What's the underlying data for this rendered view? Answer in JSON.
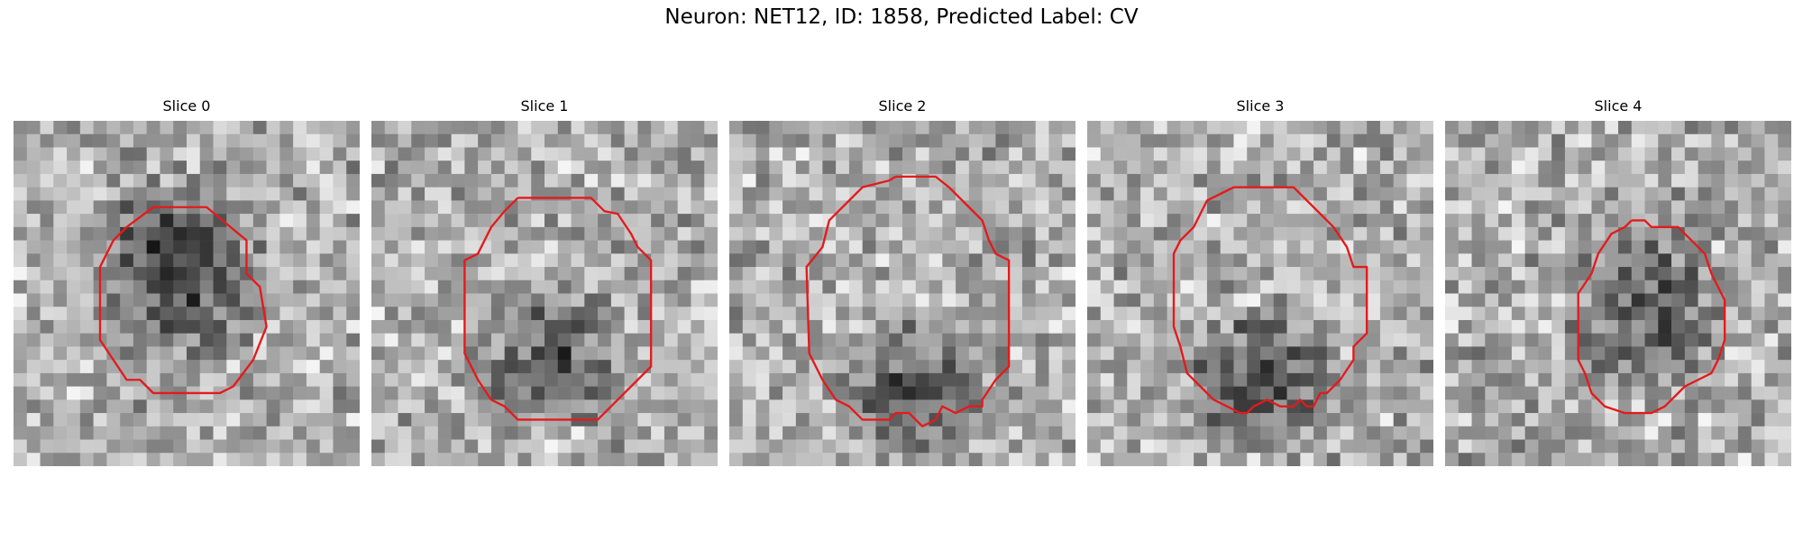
{
  "figure": {
    "title": "Neuron: NET12, ID: 1858, Predicted Label: CV"
  },
  "panels": [
    {
      "title": "Slice 0",
      "seed": 11,
      "grid": 26,
      "dark_region": {
        "cx": 12.5,
        "cy": 11.0,
        "r": 7.5,
        "strength": 95
      },
      "contour": [
        [
          10.5,
          6.5
        ],
        [
          14.5,
          6.5
        ],
        [
          17.5,
          9
        ],
        [
          17.5,
          11.5
        ],
        [
          18.5,
          12.5
        ],
        [
          19,
          15.5
        ],
        [
          18,
          18
        ],
        [
          16.5,
          20
        ],
        [
          15.5,
          20.5
        ],
        [
          13,
          20.5
        ],
        [
          10.5,
          20.5
        ],
        [
          9.5,
          19.5
        ],
        [
          8.5,
          19.5
        ],
        [
          7.5,
          18
        ],
        [
          6.5,
          16.5
        ],
        [
          6.5,
          11
        ],
        [
          7.5,
          9
        ],
        [
          8.5,
          8
        ],
        [
          10.5,
          6.5
        ]
      ],
      "contour_color": "#e41a1c"
    },
    {
      "title": "Slice 1",
      "seed": 23,
      "grid": 26,
      "dark_region": {
        "cx": 13.5,
        "cy": 17.5,
        "r": 6.0,
        "strength": 75
      },
      "contour": [
        [
          11,
          5.8
        ],
        [
          16.5,
          5.8
        ],
        [
          17.5,
          6.8
        ],
        [
          18.5,
          7
        ],
        [
          19.5,
          8.5
        ],
        [
          20,
          9.5
        ],
        [
          21,
          10.5
        ],
        [
          21,
          18.5
        ],
        [
          20,
          19.5
        ],
        [
          18,
          21.5
        ],
        [
          17,
          22.5
        ],
        [
          11,
          22.5
        ],
        [
          10,
          21.5
        ],
        [
          9,
          21
        ],
        [
          8,
          19.5
        ],
        [
          7,
          17.5
        ],
        [
          7,
          10.5
        ],
        [
          8,
          10
        ],
        [
          9,
          8
        ],
        [
          10,
          6.8
        ],
        [
          11,
          5.8
        ]
      ],
      "contour_color": "#e41a1c"
    },
    {
      "title": "Slice 2",
      "seed": 37,
      "grid": 26,
      "dark_region": {
        "cx": 13.5,
        "cy": 20.0,
        "r": 5.5,
        "strength": 85
      },
      "contour": [
        [
          12.5,
          4.2
        ],
        [
          15.5,
          4.2
        ],
        [
          16.5,
          5
        ],
        [
          17,
          5.5
        ],
        [
          19,
          7.5
        ],
        [
          19.5,
          9
        ],
        [
          20,
          10
        ],
        [
          21,
          10.5
        ],
        [
          21,
          18.5
        ],
        [
          20,
          19.5
        ],
        [
          19,
          21
        ],
        [
          19,
          21.5
        ],
        [
          18,
          21.5
        ],
        [
          17,
          22
        ],
        [
          16,
          21.5
        ],
        [
          15.5,
          22.5
        ],
        [
          14.5,
          23
        ],
        [
          13.5,
          22
        ],
        [
          13,
          22
        ],
        [
          12.5,
          22
        ],
        [
          12,
          22.5
        ],
        [
          11,
          22.5
        ],
        [
          10,
          22.5
        ],
        [
          9,
          21.5
        ],
        [
          8,
          21
        ],
        [
          7,
          19.5
        ],
        [
          6,
          17.5
        ],
        [
          5.8,
          11
        ],
        [
          7,
          9.5
        ],
        [
          7.5,
          7.5
        ],
        [
          9,
          6
        ],
        [
          10,
          5
        ],
        [
          12,
          4.5
        ],
        [
          12.5,
          4.2
        ]
      ],
      "contour_color": "#e41a1c"
    },
    {
      "title": "Slice 3",
      "seed": 51,
      "grid": 26,
      "dark_region": {
        "cx": 13.0,
        "cy": 19.5,
        "r": 6.0,
        "strength": 90
      },
      "contour": [
        [
          11,
          5
        ],
        [
          15.5,
          5
        ],
        [
          16.5,
          6
        ],
        [
          18.5,
          8
        ],
        [
          19.5,
          9.5
        ],
        [
          20,
          11
        ],
        [
          21,
          11
        ],
        [
          21,
          16
        ],
        [
          20,
          17
        ],
        [
          20,
          18
        ],
        [
          19,
          19.5
        ],
        [
          18,
          20.5
        ],
        [
          17.5,
          20.5
        ],
        [
          17,
          21.5
        ],
        [
          16.5,
          21.5
        ],
        [
          16,
          21
        ],
        [
          15.5,
          21.5
        ],
        [
          14.5,
          21.5
        ],
        [
          13.5,
          21
        ],
        [
          12.5,
          21.5
        ],
        [
          12,
          22
        ],
        [
          11.5,
          22
        ],
        [
          10.5,
          21.5
        ],
        [
          9.5,
          21
        ],
        [
          9,
          20.5
        ],
        [
          8,
          19.5
        ],
        [
          7.5,
          19
        ],
        [
          7,
          17
        ],
        [
          6.5,
          15.5
        ],
        [
          6.5,
          10
        ],
        [
          7,
          9
        ],
        [
          8,
          8
        ],
        [
          9,
          6
        ],
        [
          10,
          5.5
        ],
        [
          11,
          5
        ]
      ],
      "contour_color": "#e41a1c"
    },
    {
      "title": "Slice 4",
      "seed": 67,
      "grid": 26,
      "dark_region": {
        "cx": 15.0,
        "cy": 14.0,
        "r": 6.5,
        "strength": 85
      },
      "contour": [
        [
          14,
          7.5
        ],
        [
          15,
          7.5
        ],
        [
          15.5,
          8
        ],
        [
          17.5,
          8
        ],
        [
          18.5,
          9
        ],
        [
          19.5,
          10
        ],
        [
          20,
          11.5
        ],
        [
          20.5,
          12.5
        ],
        [
          21,
          13.5
        ],
        [
          21,
          16.5
        ],
        [
          20.5,
          18
        ],
        [
          20,
          19
        ],
        [
          19,
          19.5
        ],
        [
          18,
          20
        ],
        [
          17.5,
          20.5
        ],
        [
          16.5,
          21.5
        ],
        [
          15.5,
          22
        ],
        [
          13.5,
          22
        ],
        [
          12,
          21.5
        ],
        [
          11,
          20.5
        ],
        [
          10.5,
          19
        ],
        [
          10,
          18
        ],
        [
          10,
          13
        ],
        [
          11,
          11.5
        ],
        [
          11.5,
          10
        ],
        [
          12.5,
          8.5
        ],
        [
          13.5,
          8
        ],
        [
          14,
          7.5
        ]
      ],
      "contour_color": "#e41a1c"
    }
  ]
}
